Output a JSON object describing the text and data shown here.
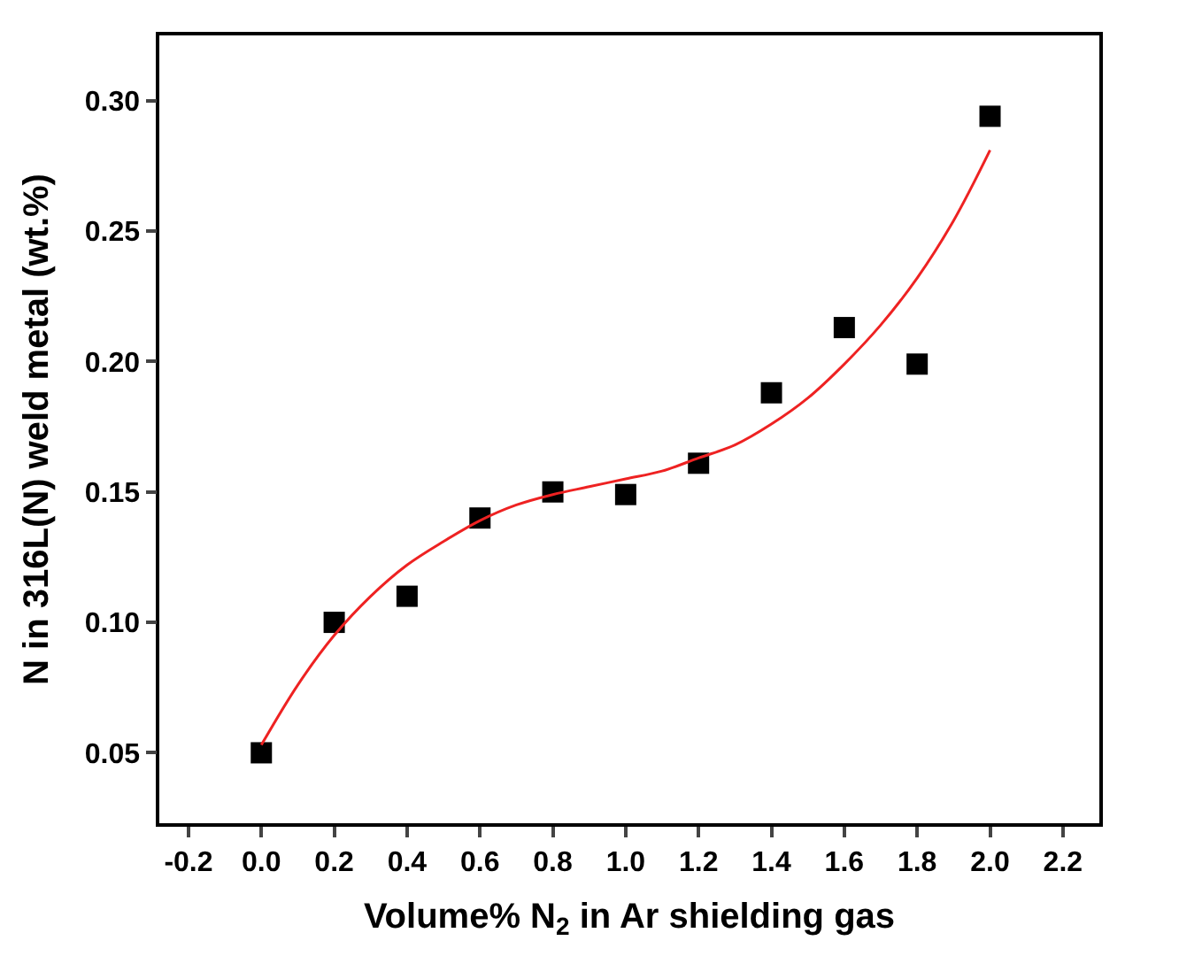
{
  "chart_data": {
    "type": "scatter",
    "xlabel": "Volume% N$_{2}$ in Ar shielding gas",
    "ylabel": "N in 316L(N) weld metal (wt.%)",
    "xlim": [
      -0.28,
      2.3
    ],
    "ylim": [
      0.023,
      0.325
    ],
    "xticks": [
      {
        "value": -0.2,
        "label": "-0.2"
      },
      {
        "value": 0,
        "label": "0.0"
      },
      {
        "value": 0.2,
        "label": "0.2"
      },
      {
        "value": 0.4,
        "label": "0.4"
      },
      {
        "value": 0.6,
        "label": "0.6"
      },
      {
        "value": 0.8,
        "label": "0.8"
      },
      {
        "value": 1.0,
        "label": "1.0"
      },
      {
        "value": 1.2,
        "label": "1.2"
      },
      {
        "value": 1.4,
        "label": "1.4"
      },
      {
        "value": 1.6,
        "label": "1.6"
      },
      {
        "value": 1.8,
        "label": "1.8"
      },
      {
        "value": 2.0,
        "label": "2.0"
      },
      {
        "value": 2.2,
        "label": "2.2"
      }
    ],
    "yticks": [
      {
        "value": 0.05,
        "label": "0.05"
      },
      {
        "value": 0.1,
        "label": "0.10"
      },
      {
        "value": 0.15,
        "label": "0.15"
      },
      {
        "value": 0.2,
        "label": "0.20"
      },
      {
        "value": 0.25,
        "label": "0.25"
      },
      {
        "value": 0.3,
        "label": "0.30"
      }
    ],
    "series": [
      {
        "marker": "square",
        "color": "#000000",
        "x": [
          0,
          0.2,
          0.4,
          0.6,
          0.8,
          1.0,
          1.2,
          1.4,
          1.6,
          1.8,
          2.0
        ],
        "values": [
          0.05,
          0.1,
          0.11,
          0.14,
          0.15,
          0.149,
          0.161,
          0.188,
          0.213,
          0.199,
          0.294
        ]
      },
      {
        "type": "line",
        "marker": "none",
        "color": "#ee2222",
        "x": [
          0,
          0.1,
          0.2,
          0.3,
          0.4,
          0.5,
          0.6,
          0.7,
          0.8,
          0.9,
          1.0,
          1.1,
          1.2,
          1.3,
          1.4,
          1.5,
          1.6,
          1.7,
          1.8,
          1.9,
          2.0
        ],
        "values": [
          0.053,
          0.076,
          0.095,
          0.11,
          0.122,
          0.131,
          0.139,
          0.145,
          0.149,
          0.152,
          0.155,
          0.158,
          0.163,
          0.168,
          0.176,
          0.186,
          0.199,
          0.214,
          0.232,
          0.254,
          0.281
        ]
      }
    ]
  }
}
